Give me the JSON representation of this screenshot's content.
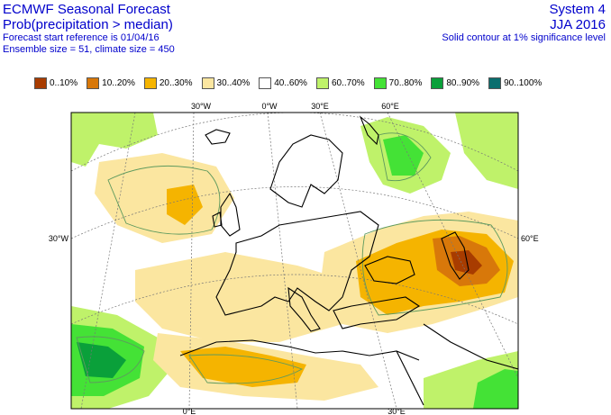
{
  "header": {
    "title": "ECMWF Seasonal Forecast",
    "subtitle": "Prob(precipitation > median)",
    "start_ref": "Forecast start reference is 01/04/16",
    "ensemble": "Ensemble size = 51, climate size = 450",
    "system": "System 4",
    "season": "JJA 2016",
    "contour_note": "Solid contour at 1% significance level"
  },
  "legend": [
    {
      "label": "0..10%",
      "color": "#a83c00"
    },
    {
      "label": "10..20%",
      "color": "#d8780a"
    },
    {
      "label": "20..30%",
      "color": "#f5b400"
    },
    {
      "label": "30..40%",
      "color": "#fbe6a0"
    },
    {
      "label": "40..60%",
      "color": "#ffffff"
    },
    {
      "label": "60..70%",
      "color": "#bff26a"
    },
    {
      "label": "70..80%",
      "color": "#44e236"
    },
    {
      "label": "80..90%",
      "color": "#0aa03a"
    },
    {
      "label": "90..100%",
      "color": "#0a6e6e"
    }
  ],
  "coords": {
    "top_30w": "30°W",
    "top_0": "0°W",
    "top_30e": "30°E",
    "top_60e": "60°E",
    "left_30w": "30°W",
    "right_60e": "60°E",
    "bottom_0": "0°E",
    "bottom_30e": "30°E"
  }
}
